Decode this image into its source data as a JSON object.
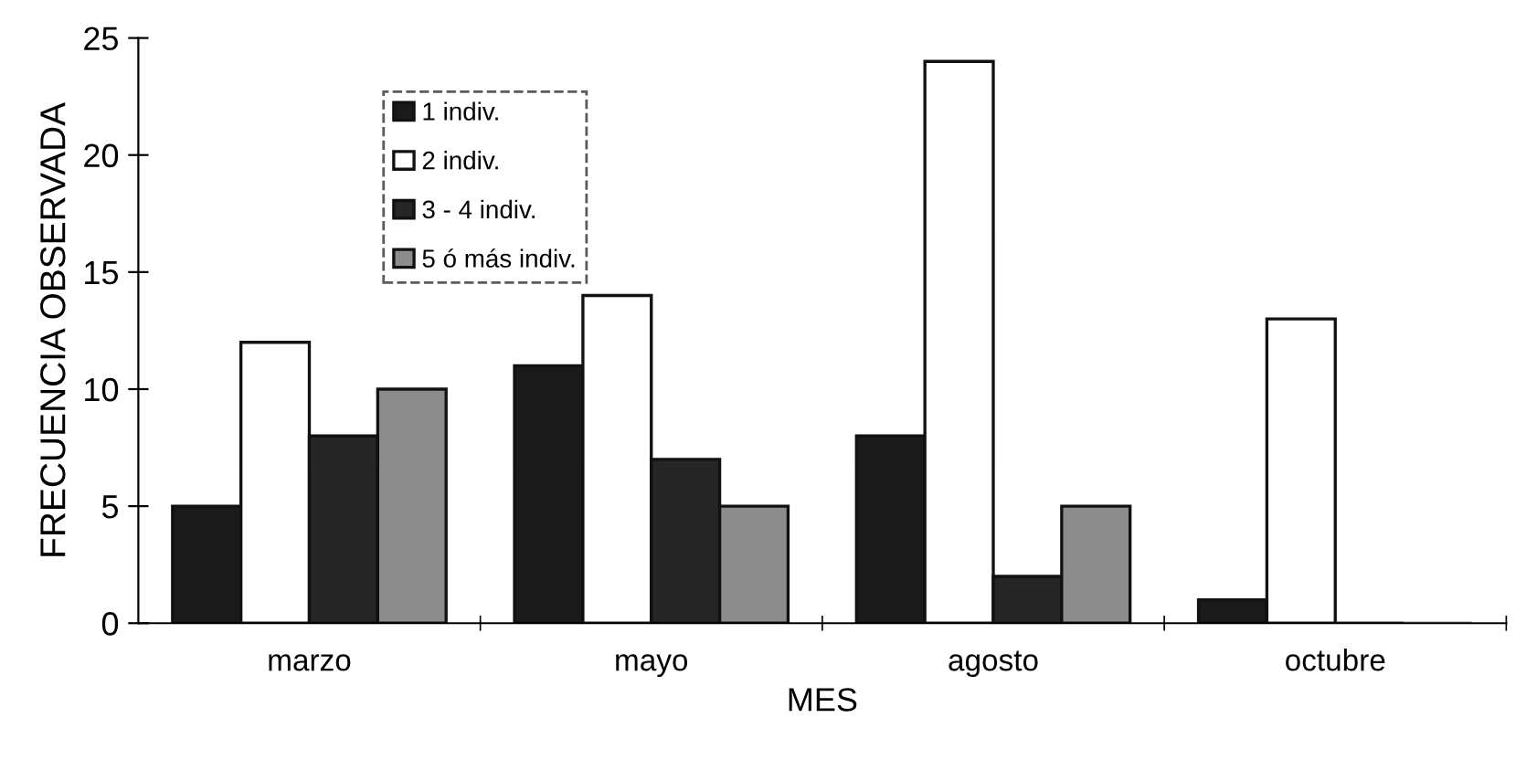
{
  "chart_data": {
    "type": "bar",
    "xlabel": "MES",
    "ylabel": "FRECUENCIA OBSERVADA",
    "categories": [
      "marzo",
      "mayo",
      "agosto",
      "octubre"
    ],
    "series": [
      {
        "name": "1 indiv.",
        "color": "#1a1a1a",
        "values": [
          5,
          11,
          8,
          1
        ]
      },
      {
        "name": "2 indiv.",
        "color": "#ffffff",
        "values": [
          12,
          14,
          24,
          13
        ]
      },
      {
        "name": "3 - 4 indiv.",
        "color": "#262626",
        "values": [
          8,
          7,
          2,
          0
        ]
      },
      {
        "name": "5 ó más indiv.",
        "color": "#8c8c8c",
        "values": [
          10,
          5,
          5,
          0
        ]
      }
    ],
    "ylim": [
      0,
      25
    ],
    "yticks": [
      0,
      5,
      10,
      15,
      20,
      25
    ],
    "grid": false,
    "legend": "top left"
  }
}
